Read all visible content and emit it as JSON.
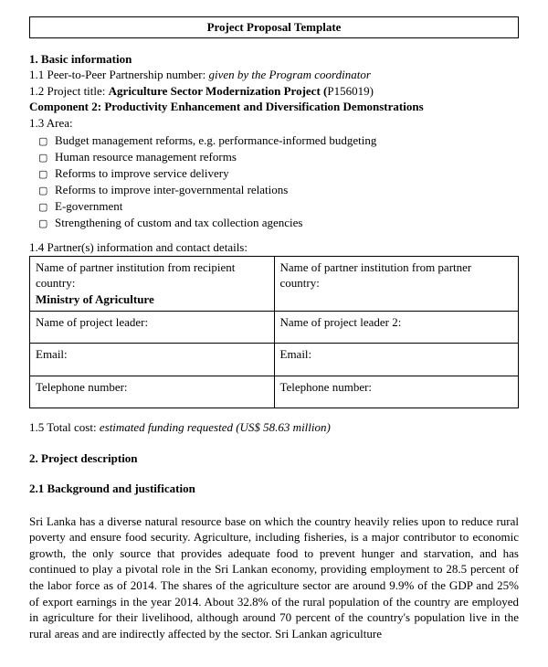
{
  "title": "Project Proposal Template",
  "section1": {
    "heading": "1. Basic information",
    "item11_label": "1.1 Peer-to-Peer Partnership number: ",
    "item11_value": "given by the Program coordinator",
    "item12_label": "1.2 Project title: ",
    "item12_value": "Agriculture Sector Modernization Project (",
    "item12_code": "P156019)",
    "component_label": "Component 2: Productivity Enhancement and Diversification Demonstrations",
    "item13_label": "1.3 Area:",
    "areas": [
      "Budget management reforms, e.g. performance-informed budgeting",
      "Human resource management reforms",
      "Reforms to improve service delivery",
      "Reforms to improve inter-governmental relations",
      "E-government",
      "Strengthening of custom and tax collection agencies"
    ],
    "item14_label": "1.4 Partner(s) information and contact details:",
    "table": {
      "r1c1a": "Name of partner institution from recipient country:",
      "r1c1b": "Ministry of Agriculture",
      "r1c2": "Name of partner institution from partner country:",
      "r2c1": "Name of project leader:",
      "r2c2": "Name of project leader 2:",
      "r3c1": "Email:",
      "r3c2": "Email:",
      "r4c1": "Telephone number:",
      "r4c2": "Telephone number:"
    },
    "item15_label": "1.5 Total cost: ",
    "item15_value": "estimated funding requested (US$ 58.63 million)"
  },
  "section2": {
    "heading": "2. Project description",
    "sub21": "2.1 Background and justification",
    "paragraph": "Sri Lanka has a diverse natural resource base on which the country heavily relies upon to reduce rural poverty and ensure food security. Agriculture, including fisheries, is a major contributor to economic growth, the only source that provides adequate food to prevent hunger and starvation, and has continued to play a pivotal role in the Sri Lankan economy, providing employment to 28.5 percent of the labor force as of 2014. The shares of the agriculture sector are around 9.9% of the GDP and 25% of export earnings in the year 2014. About 32.8% of the rural population of the country are employed in agriculture for their livelihood, although around 70 percent of the country's population live in the rural areas and are indirectly affected by the sector. Sri Lankan agriculture"
  }
}
